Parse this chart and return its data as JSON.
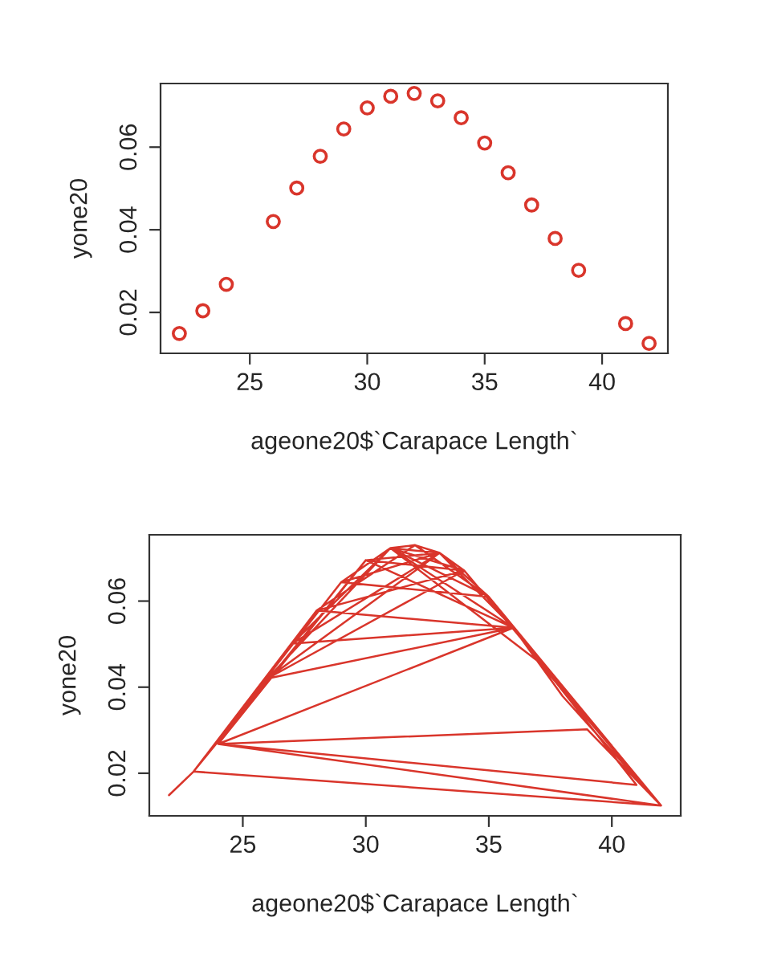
{
  "chart_data": [
    {
      "type": "scatter",
      "xlabel": "ageone20$`Carapace Length`",
      "ylabel": "yone20",
      "marker": "circle",
      "grid": false,
      "xlim": [
        21.2,
        42.8
      ],
      "ylim": [
        0.0101,
        0.0754
      ],
      "xticks": [
        25,
        30,
        35,
        40
      ],
      "yticks": [
        0.02,
        0.04,
        0.06
      ],
      "series": [
        {
          "color": "#d9352b",
          "x": [
            22,
            23,
            24,
            26,
            27,
            28,
            29,
            30,
            31,
            32,
            33,
            34,
            35,
            36,
            37,
            38,
            39,
            41,
            42
          ],
          "values": [
            0.0149,
            0.0204,
            0.0268,
            0.042,
            0.0501,
            0.0578,
            0.0644,
            0.0695,
            0.0723,
            0.073,
            0.0712,
            0.0671,
            0.061,
            0.0538,
            0.046,
            0.0379,
            0.0302,
            0.0173,
            0.0125
          ]
        }
      ]
    },
    {
      "type": "line",
      "xlabel": "ageone20$`Carapace Length`",
      "ylabel": "yone20",
      "marker": "none",
      "line_style": "solid",
      "grid": false,
      "xlim": [
        21.2,
        42.8
      ],
      "ylim": [
        0.0101,
        0.0754
      ],
      "xticks": [
        25,
        30,
        35,
        40
      ],
      "yticks": [
        0.02,
        0.04,
        0.06
      ],
      "series": [
        {
          "color": "#d9352b",
          "x": [
            22,
            23,
            26,
            31,
            33,
            36,
            42,
            24,
            39,
            42,
            23,
            30,
            34,
            42,
            24,
            36,
            26,
            34,
            28,
            36,
            27,
            33,
            29,
            35,
            31,
            37,
            42,
            23,
            28,
            32,
            35,
            41,
            24,
            30,
            33,
            26,
            36,
            31,
            34,
            42,
            23,
            29,
            31,
            32,
            33,
            34,
            30,
            36,
            38,
            42,
            24,
            27,
            31,
            33,
            35,
            42
          ],
          "values": [
            0.0149,
            0.0204,
            0.042,
            0.0723,
            0.0712,
            0.0538,
            0.0125,
            0.0268,
            0.0302,
            0.0125,
            0.0204,
            0.0695,
            0.0671,
            0.0125,
            0.0268,
            0.0538,
            0.042,
            0.0671,
            0.0578,
            0.0538,
            0.0501,
            0.0712,
            0.0644,
            0.061,
            0.0723,
            0.046,
            0.0125,
            0.0204,
            0.0578,
            0.073,
            0.061,
            0.0173,
            0.0268,
            0.0695,
            0.0712,
            0.042,
            0.0538,
            0.0723,
            0.0671,
            0.0125,
            0.0204,
            0.0644,
            0.0723,
            0.073,
            0.0712,
            0.0671,
            0.0695,
            0.0538,
            0.0379,
            0.0125,
            0.0268,
            0.0501,
            0.0723,
            0.0712,
            0.061,
            0.0125
          ]
        }
      ]
    }
  ]
}
